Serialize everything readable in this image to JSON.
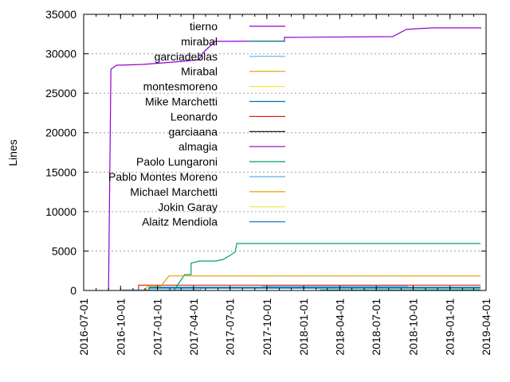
{
  "chart_data": {
    "type": "line",
    "title": "",
    "xlabel": "",
    "ylabel": "Lines",
    "xlim": [
      "2016-07-01",
      "2019-04-01"
    ],
    "ylim": [
      0,
      35000
    ],
    "xticks": [
      "2016-07-01",
      "2016-10-01",
      "2017-01-01",
      "2017-04-01",
      "2017-07-01",
      "2017-10-01",
      "2018-01-01",
      "2018-04-01",
      "2018-07-01",
      "2018-10-01",
      "2019-01-01",
      "2019-04-01"
    ],
    "yticks": [
      0,
      5000,
      10000,
      15000,
      20000,
      25000,
      30000,
      35000
    ],
    "grid": "horizontal dotted",
    "legend_position": "top-left (inside)",
    "series": [
      {
        "name": "tierno",
        "color": "#9400d3",
        "points": [
          [
            "2016-09-01",
            0
          ],
          [
            "2016-09-07",
            28040
          ],
          [
            "2016-09-21",
            28545
          ],
          [
            "2016-11-23",
            28650
          ],
          [
            "2017-01-16",
            28850
          ],
          [
            "2017-03-07",
            29050
          ],
          [
            "2017-04-15",
            29250
          ],
          [
            "2017-04-25",
            30160
          ],
          [
            "2017-05-25",
            31570
          ],
          [
            "2017-11-14",
            31620
          ],
          [
            "2017-11-14",
            32075
          ],
          [
            "2018-08-11",
            32175
          ],
          [
            "2018-09-14",
            33080
          ],
          [
            "2018-10-14",
            33185
          ],
          [
            "2018-11-19",
            33285
          ],
          [
            "2019-03-20",
            33285
          ]
        ]
      },
      {
        "name": "mirabal",
        "color": "#009e73",
        "points": [
          [
            "2018-02-11",
            0
          ],
          [
            "2018-02-11",
            60
          ],
          [
            "2019-03-18",
            80
          ]
        ]
      },
      {
        "name": "garciadeblas",
        "color": "#56b4e9",
        "points": [
          [
            "2016-10-06",
            0
          ],
          [
            "2016-10-06",
            60
          ],
          [
            "2017-04-19",
            80
          ],
          [
            "2017-04-19",
            450
          ]
        ]
      },
      {
        "name": "Mirabal",
        "color": "#e69f00",
        "points": [
          [
            "2016-12-01",
            0
          ],
          [
            "2016-12-07",
            600
          ]
        ]
      },
      {
        "name": "montesmoreno",
        "color": "#f0e442",
        "points": [
          [
            "2017-01-01",
            0
          ],
          [
            "2017-01-05",
            20
          ]
        ]
      },
      {
        "name": "Mike Marchetti",
        "color": "#0072b2",
        "points": [
          [
            "2016-12-11",
            0
          ],
          [
            "2016-12-11",
            400
          ],
          [
            "2019-03-18",
            400
          ]
        ]
      },
      {
        "name": "Leonardo",
        "color": "#e51e10",
        "points": [
          [
            "2016-11-15",
            0
          ],
          [
            "2016-11-15",
            675
          ],
          [
            "2019-03-18",
            675
          ]
        ]
      },
      {
        "name": "garciaana",
        "color": "#000000",
        "points": []
      },
      {
        "name": "almagia",
        "color": "#9400d3",
        "points": []
      },
      {
        "name": "Paolo Lungaroni",
        "color": "#009e73",
        "points": [
          [
            "2017-02-11",
            0
          ],
          [
            "2017-03-10",
            2017
          ],
          [
            "2017-03-26",
            2017
          ],
          [
            "2017-03-26",
            3460
          ],
          [
            "2017-04-15",
            3730
          ],
          [
            "2017-05-27",
            3730
          ],
          [
            "2017-06-14",
            3930
          ],
          [
            "2017-07-04",
            4540
          ],
          [
            "2017-07-14",
            4870
          ],
          [
            "2017-07-18",
            5950
          ],
          [
            "2019-03-18",
            5950
          ]
        ]
      },
      {
        "name": "Pablo Montes Moreno",
        "color": "#56b4e9",
        "points": [
          [
            "2017-09-19",
            500
          ],
          [
            "2018-09-18",
            500
          ]
        ]
      },
      {
        "name": "Michael Marchetti",
        "color": "#e69f00",
        "points": [
          [
            "2016-12-07",
            600
          ],
          [
            "2017-01-10",
            600
          ],
          [
            "2017-01-30",
            1850
          ],
          [
            "2019-03-18",
            1850
          ]
        ]
      },
      {
        "name": "Jokin Garay",
        "color": "#f0e442",
        "points": []
      },
      {
        "name": "Alaitz Mendiola",
        "color": "#0072b2",
        "points": [
          [
            "2016-12-11",
            300
          ],
          [
            "2019-03-18",
            300
          ]
        ]
      }
    ]
  }
}
